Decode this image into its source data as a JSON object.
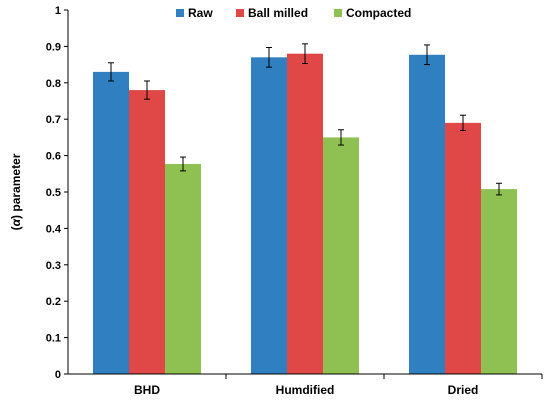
{
  "chart_data": {
    "type": "bar",
    "categories": [
      "BHD",
      "Humdified",
      "Dried"
    ],
    "series": [
      {
        "name": "Raw",
        "color": "#2f7fc1",
        "values": [
          0.83,
          0.87,
          0.877
        ],
        "errors": [
          0.025,
          0.027,
          0.027
        ]
      },
      {
        "name": "Ball milled",
        "color": "#e04848",
        "values": [
          0.78,
          0.88,
          0.69
        ],
        "errors": [
          0.025,
          0.027,
          0.021
        ]
      },
      {
        "name": "Compacted",
        "color": "#8fc152",
        "values": [
          0.577,
          0.65,
          0.508
        ],
        "errors": [
          0.019,
          0.021,
          0.016
        ]
      }
    ],
    "ylabel_prefix": "(",
    "ylabel_symbol": "α",
    "ylabel_suffix": ") parameter",
    "ylim": [
      0,
      1
    ],
    "yticks": [
      "0",
      "0.1",
      "0.2",
      "0.3",
      "0.4",
      "0.5",
      "0.6",
      "0.7",
      "0.8",
      "0.9",
      "1"
    ],
    "legend_position": "top",
    "grid": false
  }
}
